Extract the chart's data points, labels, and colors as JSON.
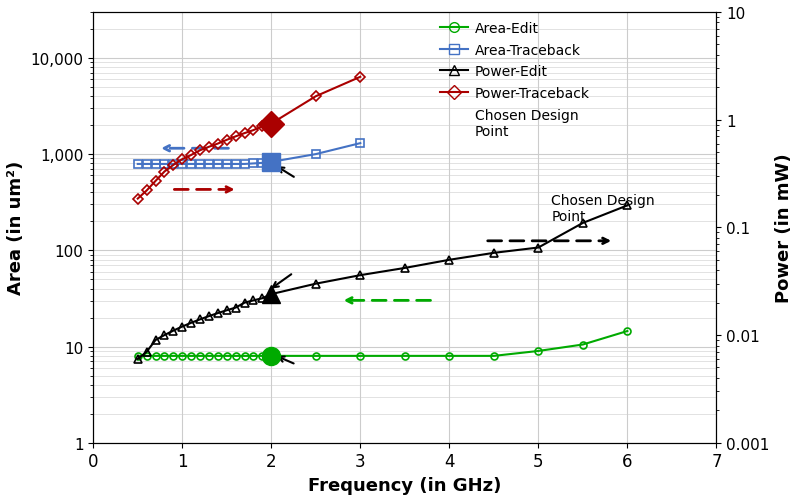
{
  "xlabel": "Frequency (in GHz)",
  "ylabel_left": "Area (in um²)",
  "ylabel_right": "Power (in mW)",
  "xlim": [
    0.25,
    7
  ],
  "ylim_left": [
    1,
    30000
  ],
  "ylim_right": [
    0.001,
    10
  ],
  "area_edit_x": [
    0.5,
    0.6,
    0.7,
    0.8,
    0.9,
    1.0,
    1.1,
    1.2,
    1.3,
    1.4,
    1.5,
    1.6,
    1.7,
    1.8,
    1.9,
    2.0,
    2.5,
    3.0,
    3.5,
    4.0,
    4.5,
    5.0,
    5.5,
    6.0
  ],
  "area_edit_y": [
    8.0,
    8.0,
    8.0,
    8.0,
    8.0,
    8.0,
    8.0,
    8.0,
    8.0,
    8.0,
    8.0,
    8.0,
    8.0,
    8.0,
    8.0,
    8.0,
    8.0,
    8.0,
    8.0,
    8.0,
    8.0,
    9.0,
    10.5,
    14.5
  ],
  "area_edit_color": "#00aa00",
  "area_edit_chosen_x": 2.0,
  "area_edit_chosen_y": 8.0,
  "area_traceback_x": [
    0.5,
    0.6,
    0.7,
    0.8,
    0.9,
    1.0,
    1.1,
    1.2,
    1.3,
    1.4,
    1.5,
    1.6,
    1.7,
    1.8,
    1.9,
    2.0,
    2.5,
    3.0
  ],
  "area_traceback_y": [
    790,
    790,
    790,
    790,
    790,
    790,
    790,
    790,
    790,
    790,
    790,
    790,
    790,
    800,
    810,
    830,
    1000,
    1300
  ],
  "area_traceback_color": "#4472c4",
  "area_traceback_chosen_x": 2.0,
  "area_traceback_chosen_y": 830,
  "power_edit_x": [
    0.5,
    0.6,
    0.7,
    0.8,
    0.9,
    1.0,
    1.1,
    1.2,
    1.3,
    1.4,
    1.5,
    1.6,
    1.7,
    1.8,
    1.9,
    2.0,
    2.5,
    3.0,
    3.5,
    4.0,
    4.5,
    5.0,
    5.5,
    6.0
  ],
  "power_edit_y": [
    0.006,
    0.007,
    0.009,
    0.01,
    0.011,
    0.012,
    0.013,
    0.014,
    0.015,
    0.016,
    0.017,
    0.018,
    0.02,
    0.021,
    0.022,
    0.024,
    0.03,
    0.036,
    0.042,
    0.05,
    0.058,
    0.065,
    0.11,
    0.16
  ],
  "power_edit_color": "#000000",
  "power_edit_chosen_x": 2.0,
  "power_edit_chosen_y": 0.024,
  "power_traceback_x": [
    0.5,
    0.6,
    0.7,
    0.8,
    0.9,
    1.0,
    1.1,
    1.2,
    1.3,
    1.4,
    1.5,
    1.6,
    1.7,
    1.8,
    1.9,
    2.0,
    2.5,
    3.0
  ],
  "power_traceback_y": [
    0.185,
    0.22,
    0.27,
    0.33,
    0.38,
    0.43,
    0.47,
    0.52,
    0.56,
    0.6,
    0.65,
    0.7,
    0.75,
    0.8,
    0.87,
    0.92,
    1.65,
    2.5
  ],
  "power_traceback_color": "#aa0000",
  "power_traceback_chosen_x": 2.0,
  "power_traceback_chosen_y": 0.92,
  "legend_labels": [
    "Area-Edit",
    "Area-Traceback",
    "Power-Edit",
    "Power-Traceback",
    "Chosen Design\nPoint"
  ],
  "legend_colors": [
    "#00aa00",
    "#4472c4",
    "#000000",
    "#aa0000"
  ],
  "legend_markers": [
    "o",
    "s",
    "^",
    "D"
  ],
  "background_color": "#ffffff",
  "grid_color": "#cccccc"
}
